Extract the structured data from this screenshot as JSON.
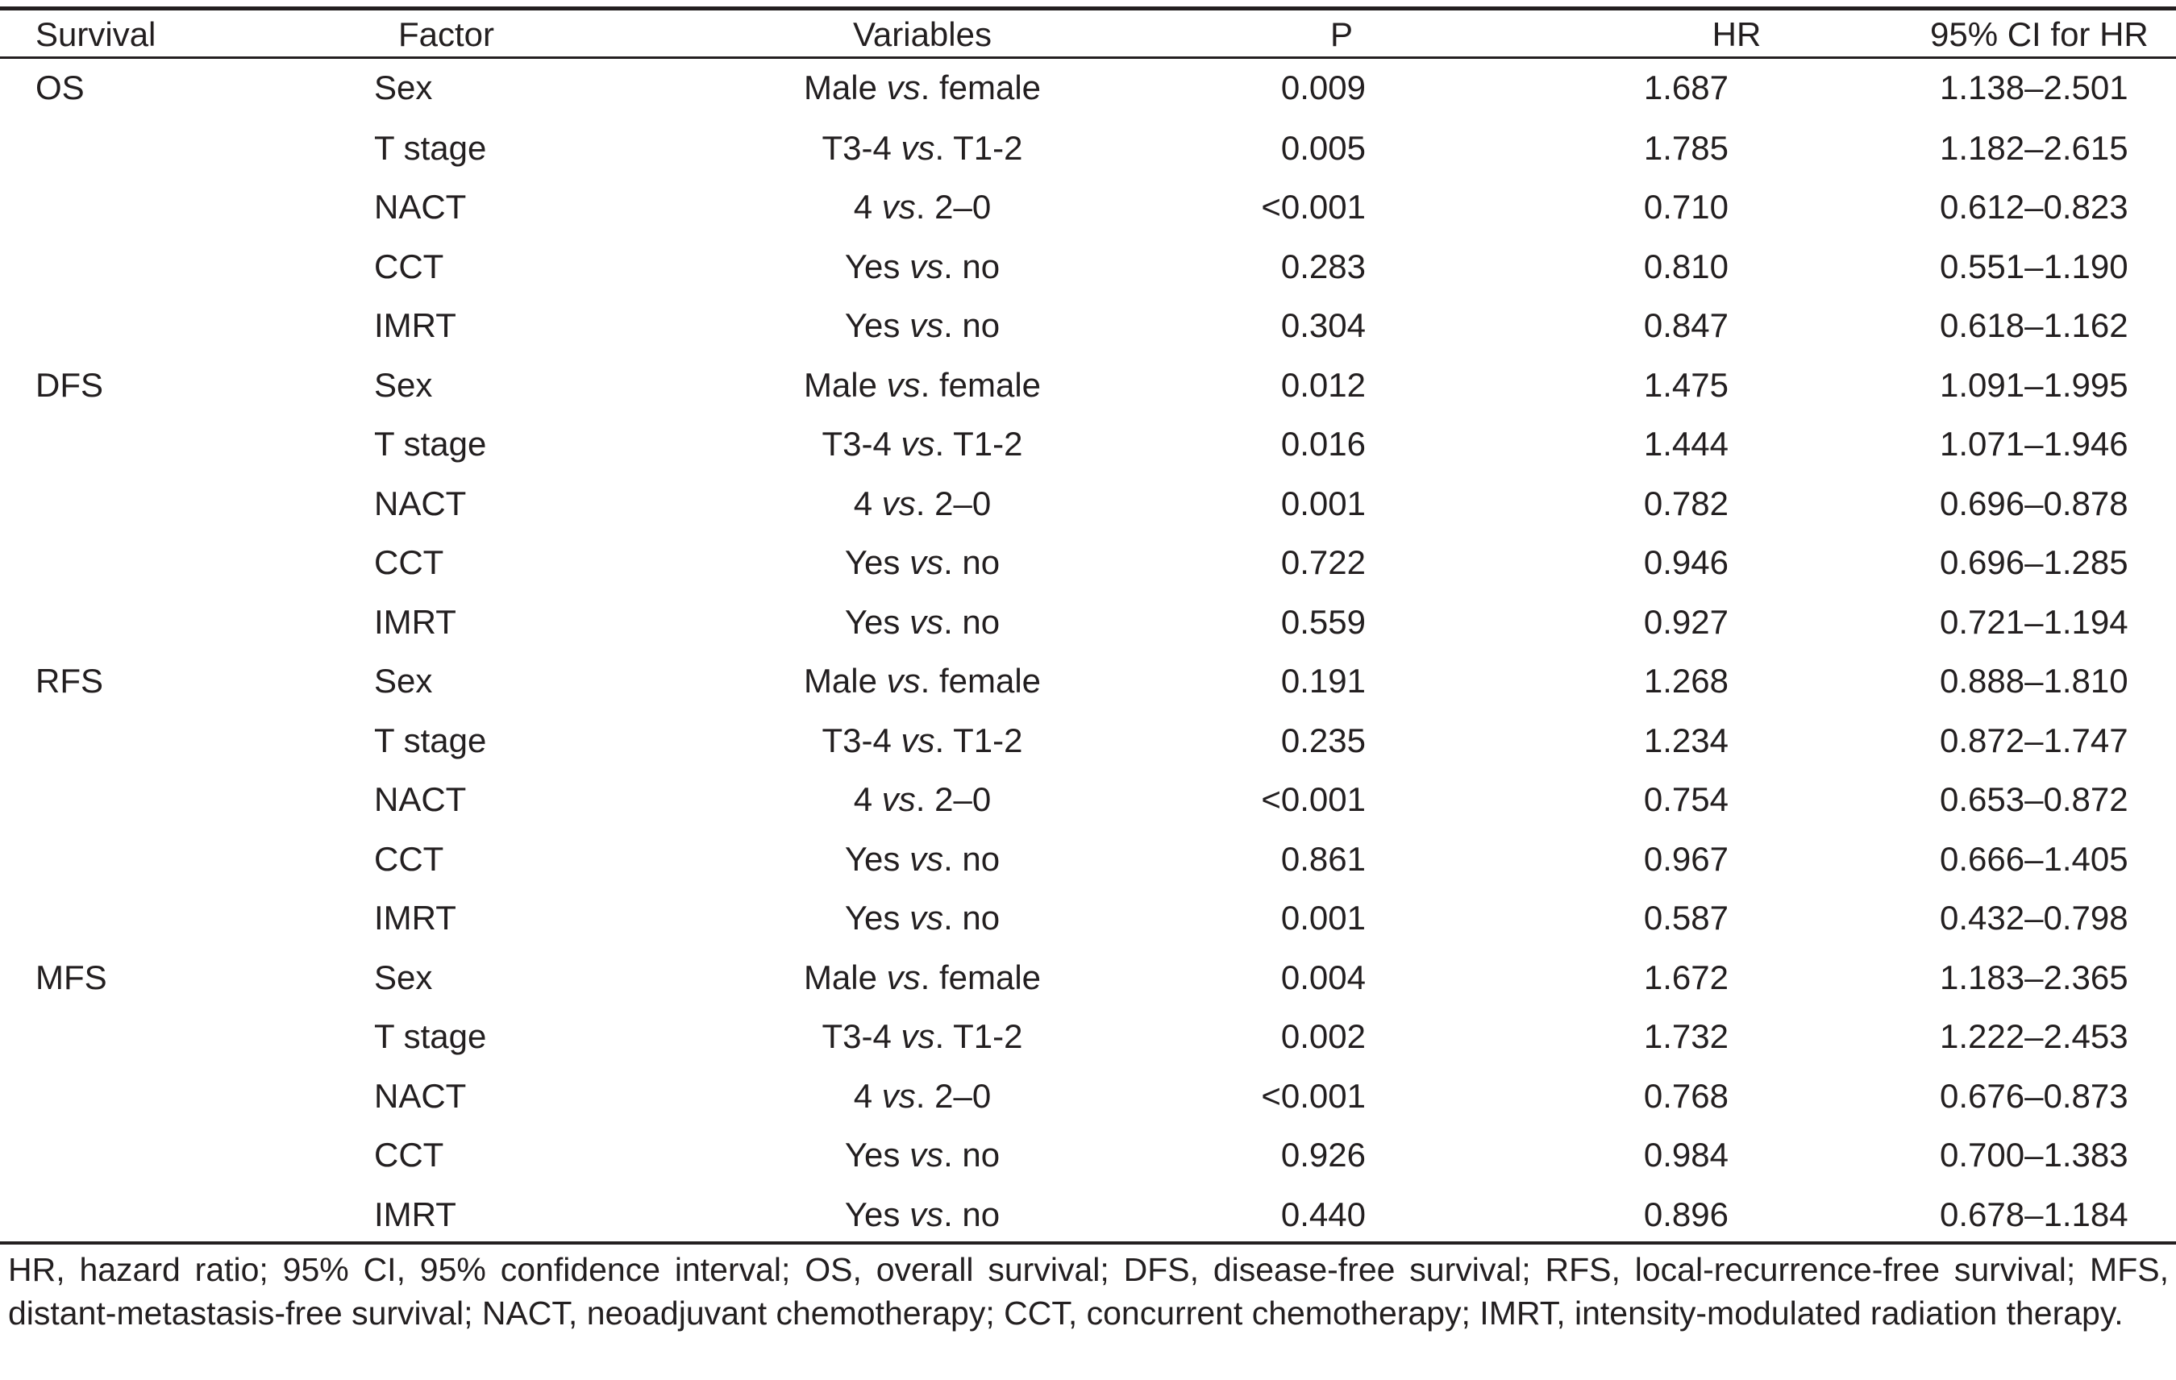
{
  "columns": {
    "survival": "Survival",
    "factor": "Factor",
    "variables": "Variables",
    "p": "P",
    "hr": "HR",
    "ci": "95% CI for HR"
  },
  "rows": [
    {
      "survival": "OS",
      "factor": "Sex",
      "var_a": "Male ",
      "vs": "vs",
      "var_b": ". female",
      "p": "0.009",
      "hr": "1.687",
      "ci": "1.138–2.501"
    },
    {
      "survival": "",
      "factor": "T stage",
      "var_a": "T3-4 ",
      "vs": "vs",
      "var_b": ". T1-2",
      "p": "0.005",
      "hr": "1.785",
      "ci": "1.182–2.615"
    },
    {
      "survival": "",
      "factor": "NACT",
      "var_a": "4 ",
      "vs": "vs",
      "var_b": ". 2–0",
      "p": "<0.001",
      "hr": "0.710",
      "ci": "0.612–0.823"
    },
    {
      "survival": "",
      "factor": "CCT",
      "var_a": "Yes ",
      "vs": "vs",
      "var_b": ". no",
      "p": "0.283",
      "hr": "0.810",
      "ci": "0.551–1.190"
    },
    {
      "survival": "",
      "factor": "IMRT",
      "var_a": "Yes ",
      "vs": "vs",
      "var_b": ". no",
      "p": "0.304",
      "hr": "0.847",
      "ci": "0.618–1.162"
    },
    {
      "survival": "DFS",
      "factor": "Sex",
      "var_a": "Male ",
      "vs": "vs",
      "var_b": ". female",
      "p": "0.012",
      "hr": "1.475",
      "ci": "1.091–1.995"
    },
    {
      "survival": "",
      "factor": "T stage",
      "var_a": "T3-4 ",
      "vs": "vs",
      "var_b": ". T1-2",
      "p": "0.016",
      "hr": "1.444",
      "ci": "1.071–1.946"
    },
    {
      "survival": "",
      "factor": "NACT",
      "var_a": "4 ",
      "vs": "vs",
      "var_b": ". 2–0",
      "p": "0.001",
      "hr": "0.782",
      "ci": "0.696–0.878"
    },
    {
      "survival": "",
      "factor": "CCT",
      "var_a": "Yes ",
      "vs": "vs",
      "var_b": ". no",
      "p": "0.722",
      "hr": "0.946",
      "ci": "0.696–1.285"
    },
    {
      "survival": "",
      "factor": "IMRT",
      "var_a": "Yes ",
      "vs": "vs",
      "var_b": ". no",
      "p": "0.559",
      "hr": "0.927",
      "ci": "0.721–1.194"
    },
    {
      "survival": "RFS",
      "factor": "Sex",
      "var_a": "Male ",
      "vs": "vs",
      "var_b": ". female",
      "p": "0.191",
      "hr": "1.268",
      "ci": "0.888–1.810"
    },
    {
      "survival": "",
      "factor": "T stage",
      "var_a": "T3-4 ",
      "vs": "vs",
      "var_b": ". T1-2",
      "p": "0.235",
      "hr": "1.234",
      "ci": "0.872–1.747"
    },
    {
      "survival": "",
      "factor": "NACT",
      "var_a": "4 ",
      "vs": "vs",
      "var_b": ". 2–0",
      "p": "<0.001",
      "hr": "0.754",
      "ci": "0.653–0.872"
    },
    {
      "survival": "",
      "factor": "CCT",
      "var_a": "Yes ",
      "vs": "vs",
      "var_b": ". no",
      "p": "0.861",
      "hr": "0.967",
      "ci": "0.666–1.405"
    },
    {
      "survival": "",
      "factor": "IMRT",
      "var_a": "Yes ",
      "vs": "vs",
      "var_b": ". no",
      "p": "0.001",
      "hr": "0.587",
      "ci": "0.432–0.798"
    },
    {
      "survival": "MFS",
      "factor": "Sex",
      "var_a": "Male ",
      "vs": "vs",
      "var_b": ". female",
      "p": "0.004",
      "hr": "1.672",
      "ci": "1.183–2.365"
    },
    {
      "survival": "",
      "factor": "T stage",
      "var_a": "T3-4 ",
      "vs": "vs",
      "var_b": ". T1-2",
      "p": "0.002",
      "hr": "1.732",
      "ci": "1.222–2.453"
    },
    {
      "survival": "",
      "factor": "NACT",
      "var_a": "4 ",
      "vs": "vs",
      "var_b": ". 2–0",
      "p": "<0.001",
      "hr": "0.768",
      "ci": "0.676–0.873"
    },
    {
      "survival": "",
      "factor": "CCT",
      "var_a": "Yes ",
      "vs": "vs",
      "var_b": ". no",
      "p": "0.926",
      "hr": "0.984",
      "ci": "0.700–1.383"
    },
    {
      "survival": "",
      "factor": "IMRT",
      "var_a": "Yes ",
      "vs": "vs",
      "var_b": ". no",
      "p": "0.440",
      "hr": "0.896",
      "ci": "0.678–1.184"
    }
  ],
  "footnote": "HR, hazard ratio; 95% CI, 95% confidence interval; OS, overall survival; DFS, disease-free survival; RFS, local-recurrence-free survival; MFS, distant-metastasis-free survival; NACT, neoadjuvant chemotherapy; CCT, concurrent chemotherapy; IMRT, intensity-modulated radiation therapy."
}
